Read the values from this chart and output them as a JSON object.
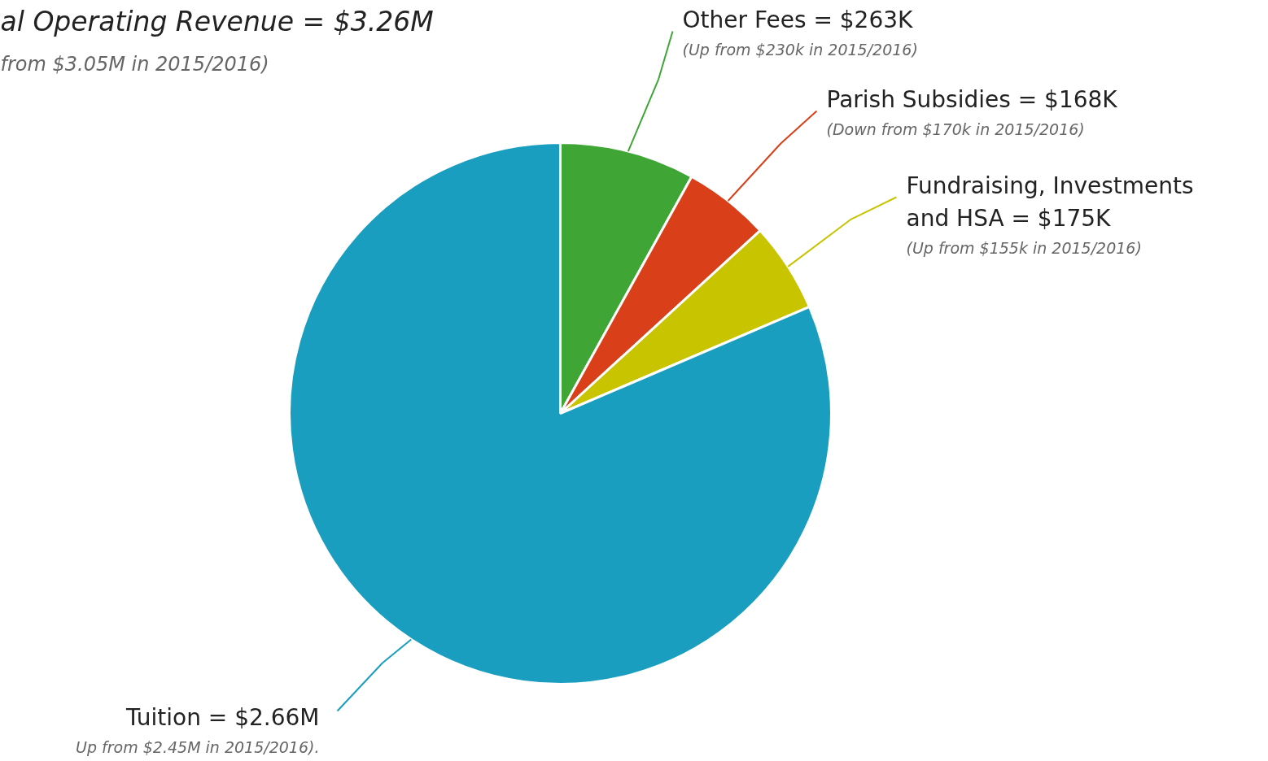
{
  "chart_data": {
    "type": "pie",
    "title": "al Operating Revenue = $3.26M",
    "subtitle": "from $3.05M in 2015/2016)",
    "categories": [
      "Other Fees = $263K",
      "Parish Subsidies = $168K",
      "Fundraising, Investments and HSA = $175K",
      "Tuition = $2.66M"
    ],
    "values": [
      0.263,
      0.168,
      0.175,
      2.66
    ],
    "colors": [
      "#3fa535",
      "#d9401a",
      "#c8c400",
      "#1a9ec0"
    ],
    "annotations": [
      "(Up from $230k in 2015/2016)",
      "(Down from $170k in 2015/2016)",
      "(Up from $155k in 2015/2016)",
      "Up from $2.45M in 2015/2016)."
    ]
  }
}
